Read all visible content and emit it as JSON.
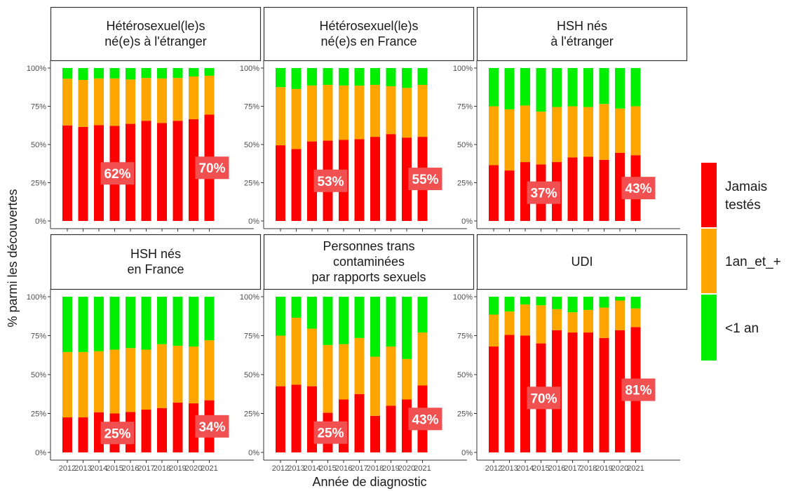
{
  "chart_data": {
    "type": "bar",
    "subtype": "stacked-percent-faceted",
    "xlabel": "Année de diagnostic",
    "ylabel": "% parmi les découvertes",
    "ylim": [
      0,
      100
    ],
    "y_ticks": [
      "0%",
      "25%",
      "50%",
      "75%",
      "100%"
    ],
    "years": [
      "2012",
      "2013",
      "2014",
      "2015",
      "2016",
      "2017",
      "2018",
      "2019",
      "2020",
      "2021"
    ],
    "series_colors": {
      "Jamais testés": "#ff0000",
      "1an_et_+": "#ffa500",
      "<1 an": "#00ee00"
    },
    "annotation_color": "#f05050",
    "legend": {
      "position": "right",
      "entries": [
        {
          "key": "jamais",
          "label_lines": [
            "Jamais",
            "testés"
          ],
          "color": "#ff0000"
        },
        {
          "key": "un_an_plus",
          "label_lines": [
            "1an_et_+"
          ],
          "color": "#ffa500"
        },
        {
          "key": "moins_un_an",
          "label_lines": [
            "<1 an"
          ],
          "color": "#00ee00"
        }
      ]
    },
    "panels": [
      {
        "title_lines": [
          "Hétérosexuel(le)s",
          "né(e)s à l'étranger"
        ],
        "jamais": [
          62.5,
          61.5,
          62.6,
          62.2,
          63.5,
          65.5,
          64.1,
          65.5,
          66.5,
          69.5
        ],
        "jamais_plus_un_an_plus": [
          93,
          92.2,
          93.2,
          93.2,
          92.5,
          93.5,
          93.2,
          93.5,
          94.5,
          95
        ],
        "annotations": [
          {
            "year": "2015",
            "label": "62%"
          },
          {
            "year": "2021",
            "label": "70%"
          }
        ]
      },
      {
        "title_lines": [
          "Hétérosexuel(le)s",
          "né(e)s en France"
        ],
        "jamais": [
          49.5,
          47,
          52,
          52.5,
          53,
          53.5,
          55,
          56.8,
          54.5,
          55
        ],
        "jamais_plus_un_an_plus": [
          87.5,
          86.3,
          88.6,
          89,
          88.6,
          88.5,
          89,
          88.1,
          87,
          89
        ],
        "annotations": [
          {
            "year": "2015",
            "label": "53%"
          },
          {
            "year": "2021",
            "label": "55%"
          }
        ]
      },
      {
        "title_lines": [
          "HSH nés",
          "à l'étranger"
        ],
        "jamais": [
          36.5,
          33,
          38.5,
          37,
          38.5,
          41.5,
          42,
          40,
          44.5,
          43
        ],
        "jamais_plus_un_an_plus": [
          75,
          73,
          75.5,
          71.5,
          74.5,
          75,
          74.5,
          76.5,
          73.5,
          75
        ],
        "annotations": [
          {
            "year": "2015",
            "label": "37%"
          },
          {
            "year": "2021",
            "label": "43%"
          }
        ]
      },
      {
        "title_lines": [
          "HSH nés",
          "en France"
        ],
        "jamais": [
          22.5,
          22.5,
          25.8,
          25,
          26,
          27.5,
          28.5,
          32,
          31.5,
          33.5
        ],
        "jamais_plus_un_an_plus": [
          64.5,
          64.5,
          65,
          66,
          67,
          66,
          69.5,
          68.5,
          68,
          72
        ],
        "annotations": [
          {
            "year": "2015",
            "label": "25%"
          },
          {
            "year": "2021",
            "label": "34%"
          }
        ]
      },
      {
        "title_lines": [
          "Personnes trans",
          "contaminées",
          "par rapports sexuels"
        ],
        "jamais": [
          42.5,
          43.5,
          42.5,
          25.5,
          34,
          37.5,
          23.5,
          30,
          34,
          43
        ],
        "jamais_plus_un_an_plus": [
          75,
          86.5,
          79.5,
          69,
          69.5,
          73.5,
          61.5,
          68,
          60,
          77
        ],
        "annotations": [
          {
            "year": "2015",
            "label": "25%"
          },
          {
            "year": "2021",
            "label": "43%"
          }
        ]
      },
      {
        "title_lines": [
          "UDI"
        ],
        "jamais": [
          68,
          75.5,
          75,
          70,
          78.5,
          77,
          77,
          73.5,
          78.5,
          80.5
        ],
        "jamais_plus_un_an_plus": [
          88.5,
          90.5,
          95,
          94.5,
          92,
          90,
          91.5,
          93,
          97.5,
          92.5
        ],
        "annotations": [
          {
            "year": "2015",
            "label": "70%"
          },
          {
            "year": "2021",
            "label": "81%"
          }
        ]
      }
    ]
  }
}
